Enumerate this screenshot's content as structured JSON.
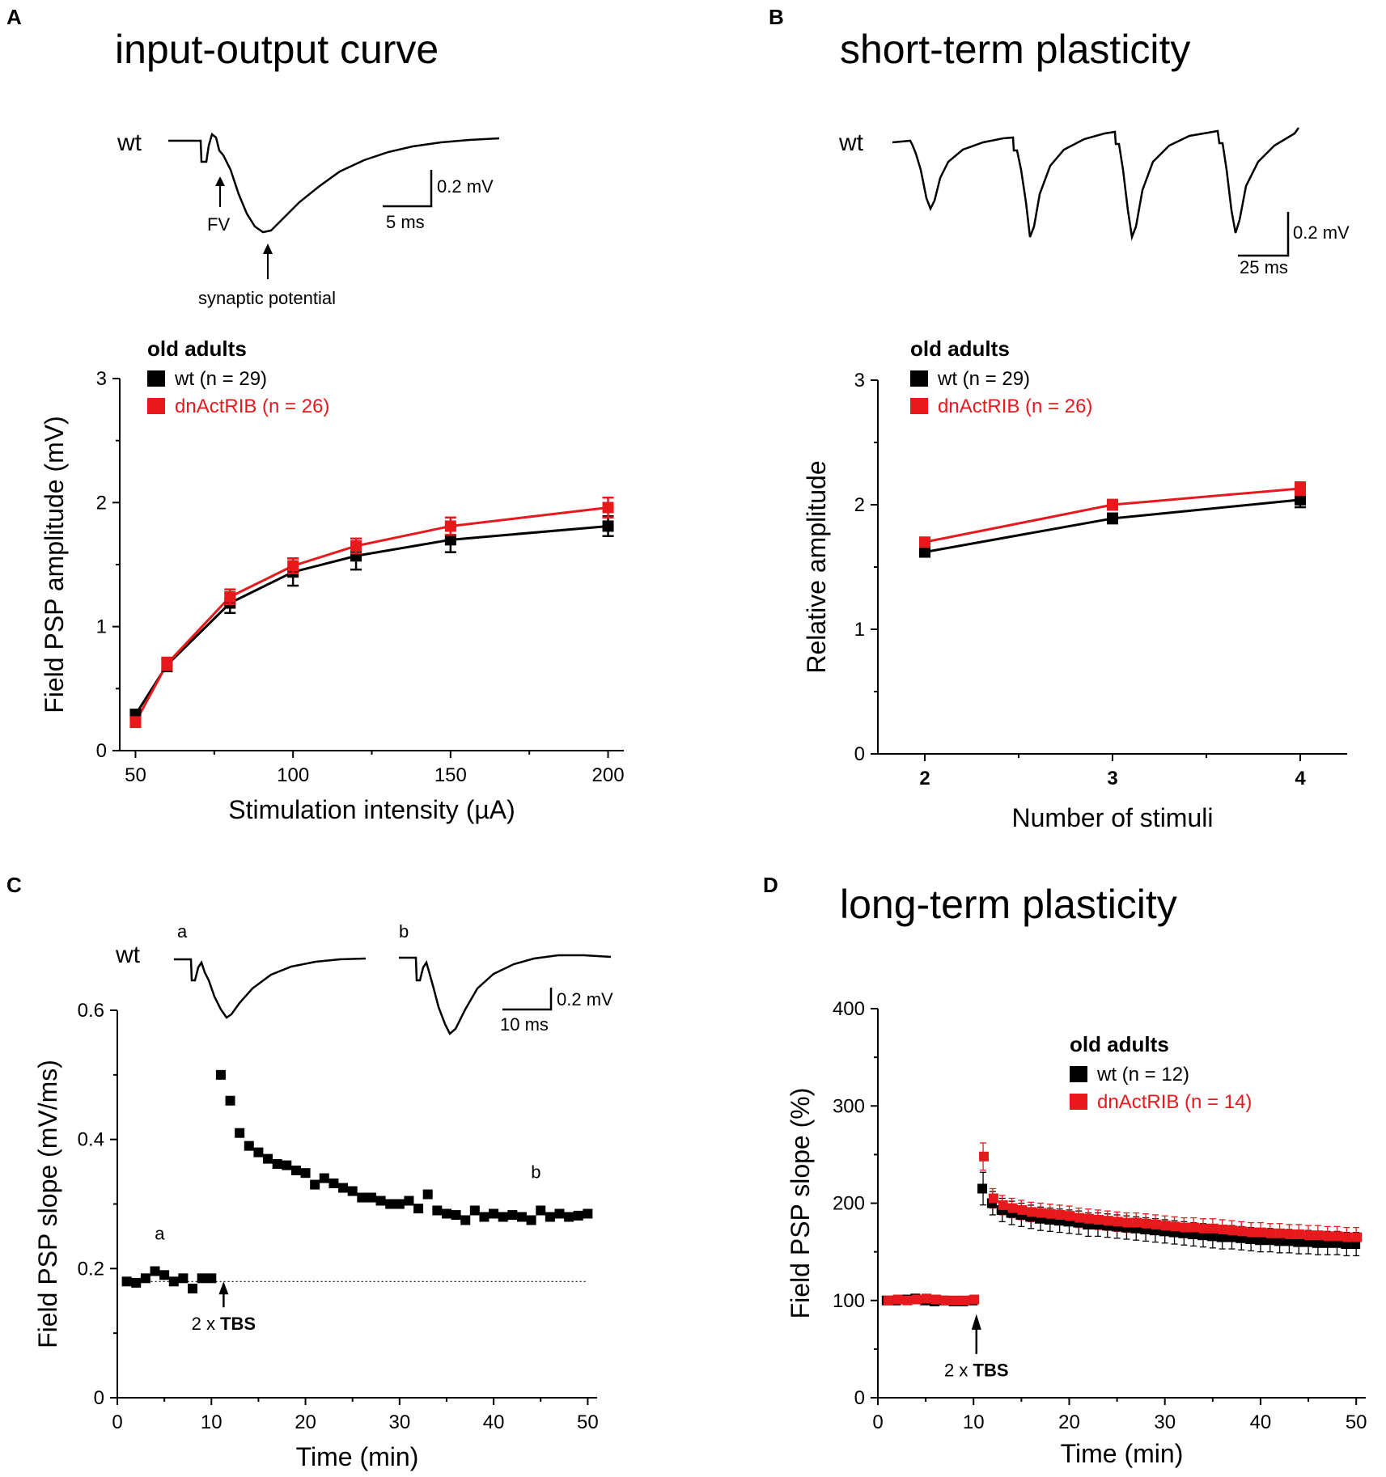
{
  "colors": {
    "wt": "#000000",
    "mutant": "#e8191c"
  },
  "panels": {
    "A": {
      "letter": "A",
      "title": "input-output curve",
      "trace": {
        "label": "wt",
        "fv_label": "FV",
        "synaptic_label": "synaptic potential",
        "scale_y": "0.2 mV",
        "scale_x": "5 ms"
      }
    },
    "B": {
      "letter": "B",
      "title": "short-term plasticity",
      "trace": {
        "label": "wt",
        "scale_y": "0.2 mV",
        "scale_x": "25 ms"
      }
    },
    "C": {
      "letter": "C",
      "trace": {
        "label": "wt",
        "label_a": "a",
        "label_b": "b",
        "scale_y": "0.2 mV",
        "scale_x": "10 ms"
      }
    },
    "D": {
      "letter": "D",
      "title": "long-term plasticity"
    }
  },
  "chart_data": [
    {
      "panel": "A",
      "type": "line",
      "title": "input-output curve",
      "legend_title": "old adults",
      "xlabel": "Stimulation intensity (µA)",
      "ylabel": "Field PSP amplitude (mV)",
      "xlim": [
        45,
        205
      ],
      "ylim": [
        0,
        3
      ],
      "xticks": [
        50,
        100,
        150,
        200
      ],
      "yticks": [
        0,
        1,
        2,
        3
      ],
      "x": [
        50,
        60,
        80,
        100,
        120,
        150,
        200
      ],
      "series": [
        {
          "name": "wt (n = 29)",
          "key": "wt",
          "values": [
            0.29,
            0.69,
            1.19,
            1.44,
            1.57,
            1.7,
            1.81
          ],
          "errors": [
            0.04,
            0.05,
            0.08,
            0.11,
            0.11,
            0.1,
            0.08
          ]
        },
        {
          "name": "dnActRIB (n = 26)",
          "key": "mutant",
          "values": [
            0.23,
            0.7,
            1.24,
            1.49,
            1.65,
            1.81,
            1.96
          ],
          "errors": [
            0.04,
            0.05,
            0.06,
            0.06,
            0.06,
            0.07,
            0.08
          ]
        }
      ]
    },
    {
      "panel": "B",
      "type": "line",
      "legend_title": "old adults",
      "xlabel": "Number of stimuli",
      "ylabel": "Relative amplitude",
      "xlim": [
        1.75,
        4.25
      ],
      "ylim": [
        0,
        3
      ],
      "xticks": [
        2,
        3,
        4
      ],
      "yticks": [
        0,
        1,
        2,
        3
      ],
      "x": [
        2,
        3,
        4
      ],
      "series": [
        {
          "name": "wt (n = 29)",
          "key": "wt",
          "values": [
            1.62,
            1.89,
            2.04
          ],
          "errors": [
            0.03,
            0.04,
            0.06
          ]
        },
        {
          "name": "dnActRIB (n = 26)",
          "key": "mutant",
          "values": [
            1.7,
            2.0,
            2.13
          ],
          "errors": [
            0.03,
            0.04,
            0.05
          ]
        }
      ]
    },
    {
      "panel": "C",
      "type": "scatter",
      "xlabel": "Time (min)",
      "ylabel": "Field PSP slope (mV/ms)",
      "xlim": [
        0,
        51
      ],
      "ylim": [
        0,
        0.6
      ],
      "xticks": [
        0,
        10,
        20,
        30,
        40,
        50
      ],
      "yticks": [
        0,
        0.2,
        0.4,
        0.6
      ],
      "baseline": 0.18,
      "annotations": {
        "a": "a",
        "b": "b",
        "arrow": "2 x ",
        "arrow_bold": "TBS"
      },
      "x": [
        1,
        2,
        3,
        4,
        5,
        6,
        7,
        8,
        9,
        10,
        11,
        12,
        13,
        14,
        15,
        16,
        17,
        18,
        19,
        20,
        21,
        22,
        23,
        24,
        25,
        26,
        27,
        28,
        29,
        30,
        31,
        32,
        33,
        34,
        35,
        36,
        37,
        38,
        39,
        40,
        41,
        42,
        43,
        44,
        45,
        46,
        47,
        48,
        49,
        50
      ],
      "values": [
        0.18,
        0.178,
        0.185,
        0.196,
        0.19,
        0.18,
        0.185,
        0.169,
        0.185,
        0.185,
        0.5,
        0.46,
        0.41,
        0.39,
        0.38,
        0.37,
        0.362,
        0.36,
        0.352,
        0.348,
        0.33,
        0.34,
        0.332,
        0.325,
        0.32,
        0.31,
        0.31,
        0.305,
        0.3,
        0.3,
        0.305,
        0.293,
        0.315,
        0.29,
        0.285,
        0.283,
        0.275,
        0.29,
        0.28,
        0.285,
        0.28,
        0.283,
        0.28,
        0.275,
        0.29,
        0.28,
        0.285,
        0.28,
        0.282,
        0.285
      ]
    },
    {
      "panel": "D",
      "type": "scatter",
      "title": "long-term plasticity",
      "legend_title": "old adults",
      "xlabel": "Time (min)",
      "ylabel": "Field PSP slope (%)",
      "xlim": [
        0,
        51
      ],
      "ylim": [
        0,
        400
      ],
      "xticks": [
        0,
        10,
        20,
        30,
        40,
        50
      ],
      "yticks": [
        0,
        100,
        200,
        300,
        400
      ],
      "annotations": {
        "arrow": "2 x ",
        "arrow_bold": "TBS"
      },
      "x": [
        1,
        2,
        3,
        4,
        5,
        6,
        7,
        8,
        9,
        10,
        11,
        12,
        13,
        14,
        15,
        16,
        17,
        18,
        19,
        20,
        21,
        22,
        23,
        24,
        25,
        26,
        27,
        28,
        29,
        30,
        31,
        32,
        33,
        34,
        35,
        36,
        37,
        38,
        39,
        40,
        41,
        42,
        43,
        44,
        45,
        46,
        47,
        48,
        49,
        50
      ],
      "series": [
        {
          "name": "wt (n = 12)",
          "key": "wt",
          "values": [
            100,
            100,
            101,
            102,
            100,
            99,
            100,
            99,
            99,
            100,
            215,
            200,
            193,
            190,
            188,
            186,
            184,
            183,
            182,
            181,
            180,
            178,
            178,
            177,
            176,
            175,
            174,
            173,
            172,
            171,
            170,
            169,
            168,
            167,
            166,
            165,
            165,
            164,
            163,
            162,
            162,
            161,
            161,
            160,
            160,
            159,
            159,
            159,
            158,
            158
          ],
          "err": 12
        },
        {
          "name": "dnActRIB (n = 14)",
          "key": "mutant",
          "values": [
            100,
            101,
            100,
            101,
            102,
            101,
            100,
            100,
            100,
            101,
            248,
            205,
            198,
            195,
            193,
            191,
            190,
            189,
            188,
            187,
            185,
            184,
            183,
            182,
            181,
            180,
            180,
            179,
            178,
            177,
            176,
            175,
            175,
            174,
            174,
            173,
            172,
            171,
            170,
            170,
            169,
            169,
            168,
            168,
            167,
            167,
            166,
            166,
            165,
            165
          ],
          "err": 10
        }
      ]
    }
  ]
}
